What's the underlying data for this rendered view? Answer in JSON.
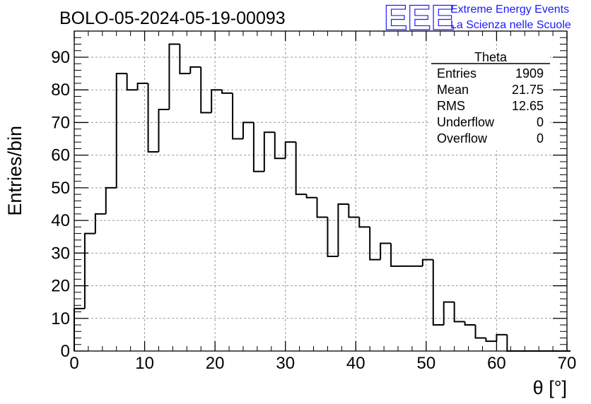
{
  "chart_data": {
    "type": "bar",
    "style": "step-histogram",
    "title": "BOLO-05-2024-05-19-00093",
    "xlabel": "θ [°]",
    "ylabel": "Entries/bin",
    "xlim": [
      0,
      70
    ],
    "ylim": [
      0,
      98
    ],
    "xticks": [
      0,
      10,
      20,
      30,
      40,
      50,
      60,
      70
    ],
    "yticks": [
      0,
      10,
      20,
      30,
      40,
      50,
      60,
      70,
      80,
      90
    ],
    "grid": true,
    "bin_width": 1.5,
    "bin_start": 0,
    "values": [
      13,
      36,
      42,
      50,
      85,
      80,
      82,
      61,
      74,
      94,
      85,
      87,
      73,
      80,
      79,
      65,
      70,
      55,
      67,
      59,
      64,
      48,
      47,
      41,
      29,
      45,
      41,
      38,
      28,
      33,
      26,
      26,
      26,
      28,
      8,
      15,
      9,
      8,
      4,
      3,
      5,
      0,
      0,
      0,
      0,
      0,
      0
    ],
    "color": "#000000"
  },
  "stats_box": {
    "name": "Theta",
    "rows": [
      {
        "label": "Entries",
        "value": "1909"
      },
      {
        "label": "Mean",
        "value": "21.75"
      },
      {
        "label": "RMS",
        "value": "12.65"
      },
      {
        "label": "Underflow",
        "value": "0"
      },
      {
        "label": "Overflow",
        "value": "0"
      }
    ]
  },
  "logo": {
    "big": "EEE",
    "line1": "Extreme Energy Events",
    "line2": "La Scienza nelle Scuole",
    "color": "#1a1aff"
  }
}
